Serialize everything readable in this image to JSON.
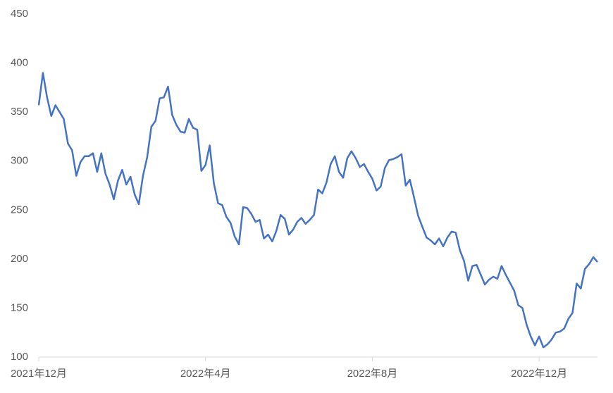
{
  "chart_data": {
    "type": "line",
    "categories": [
      "2021年12月",
      null,
      null,
      null,
      null,
      null,
      null,
      null,
      null,
      null,
      null,
      null,
      null,
      null,
      null,
      null,
      null,
      null,
      null,
      null,
      null,
      null,
      null,
      null,
      null,
      null,
      null,
      null,
      null,
      null,
      null,
      null,
      null,
      null,
      null,
      null,
      null,
      null,
      null,
      null,
      "2022年4月",
      null,
      null,
      null,
      null,
      null,
      null,
      null,
      null,
      null,
      null,
      null,
      null,
      null,
      null,
      null,
      null,
      null,
      null,
      null,
      null,
      null,
      null,
      null,
      null,
      null,
      null,
      null,
      null,
      null,
      null,
      null,
      null,
      null,
      null,
      null,
      null,
      null,
      null,
      null,
      "2022年8月",
      null,
      null,
      null,
      null,
      null,
      null,
      null,
      null,
      null,
      null,
      null,
      null,
      null,
      null,
      null,
      null,
      null,
      null,
      null,
      null,
      null,
      null,
      null,
      null,
      null,
      null,
      null,
      null,
      null,
      null,
      null,
      null,
      null,
      null,
      null,
      null,
      null,
      null,
      null,
      "2022年12月",
      null,
      null,
      null,
      null,
      null,
      null,
      null,
      null,
      null,
      null,
      null,
      null,
      null,
      null
    ],
    "values": [
      357,
      390,
      365,
      346,
      357,
      350,
      343,
      318,
      311,
      285,
      299,
      305,
      305,
      308,
      289,
      308,
      287,
      276,
      261,
      280,
      291,
      276,
      284,
      266,
      256,
      285,
      304,
      335,
      341,
      364,
      365,
      376,
      347,
      337,
      330,
      329,
      343,
      334,
      332,
      290,
      296,
      316,
      277,
      257,
      255,
      243,
      237,
      223,
      215,
      253,
      252,
      246,
      238,
      240,
      221,
      225,
      218,
      229,
      245,
      241,
      225,
      230,
      238,
      242,
      236,
      240,
      245,
      271,
      267,
      278,
      297,
      305,
      289,
      283,
      303,
      310,
      303,
      294,
      297,
      289,
      282,
      270,
      274,
      293,
      301,
      302,
      304,
      307,
      275,
      281,
      263,
      244,
      233,
      222,
      219,
      215,
      221,
      213,
      222,
      228,
      227,
      209,
      198,
      178,
      193,
      194,
      184,
      174,
      179,
      182,
      180,
      193,
      184,
      176,
      168,
      153,
      150,
      133,
      121,
      112,
      121,
      110,
      113,
      118,
      125,
      126,
      129,
      139,
      145,
      175,
      170,
      190,
      195,
      202,
      197
    ],
    "color": "#4472c4",
    "ylim": [
      100,
      450
    ],
    "yticks": [
      100,
      150,
      200,
      250,
      300,
      350,
      400,
      450
    ],
    "grid": false
  }
}
